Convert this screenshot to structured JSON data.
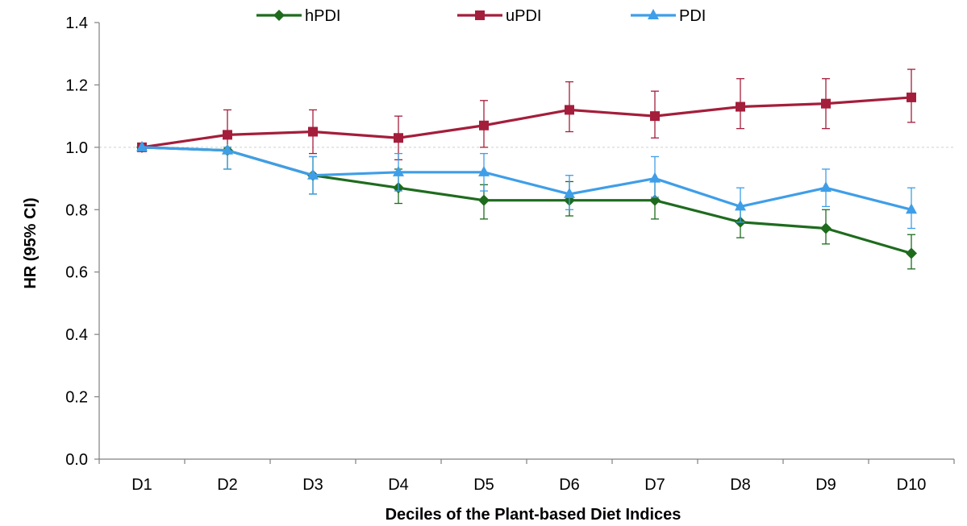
{
  "chart_data": {
    "type": "line",
    "xlabel": "Deciles of the Plant-based Diet Indices",
    "ylabel": "HR (95% CI)",
    "categories": [
      "D1",
      "D2",
      "D3",
      "D4",
      "D5",
      "D6",
      "D7",
      "D8",
      "D9",
      "D10"
    ],
    "ylim": [
      0,
      1.4
    ],
    "yticks": [
      "0.0",
      "0.2",
      "0.4",
      "0.6",
      "0.8",
      "1.0",
      "1.2",
      "1.4"
    ],
    "reference_line": 1.0,
    "legend_position": "top",
    "series": [
      {
        "name": "hPDI",
        "color": "#1e6b1e",
        "marker": "diamond",
        "values": [
          1.0,
          0.99,
          0.91,
          0.87,
          0.83,
          0.83,
          0.83,
          0.76,
          0.74,
          0.66
        ],
        "ci_low": [
          1.0,
          0.93,
          0.85,
          0.82,
          0.77,
          0.78,
          0.77,
          0.71,
          0.69,
          0.61
        ],
        "ci_high": [
          1.0,
          1.0,
          0.97,
          0.93,
          0.88,
          0.89,
          0.89,
          0.81,
          0.8,
          0.72
        ]
      },
      {
        "name": "uPDI",
        "color": "#a41e3b",
        "marker": "square",
        "values": [
          1.0,
          1.04,
          1.05,
          1.03,
          1.07,
          1.12,
          1.1,
          1.13,
          1.14,
          1.16
        ],
        "ci_low": [
          1.0,
          0.98,
          0.98,
          0.96,
          1.0,
          1.05,
          1.03,
          1.06,
          1.06,
          1.08
        ],
        "ci_high": [
          1.0,
          1.12,
          1.12,
          1.1,
          1.15,
          1.21,
          1.18,
          1.22,
          1.22,
          1.25
        ]
      },
      {
        "name": "PDI",
        "color": "#3f9ee8",
        "marker": "triangle",
        "values": [
          1.0,
          0.99,
          0.91,
          0.92,
          0.92,
          0.85,
          0.9,
          0.81,
          0.87,
          0.8
        ],
        "ci_low": [
          1.0,
          0.93,
          0.85,
          0.86,
          0.86,
          0.8,
          0.84,
          0.76,
          0.81,
          0.74
        ],
        "ci_high": [
          1.0,
          1.0,
          0.97,
          0.98,
          0.98,
          0.91,
          0.97,
          0.87,
          0.93,
          0.87
        ]
      }
    ]
  }
}
